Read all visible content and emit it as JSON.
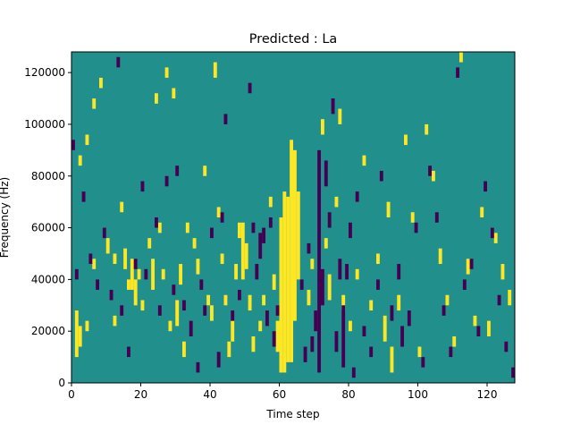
{
  "chart_data": {
    "type": "heatmap",
    "title": "Predicted : La",
    "xlabel": "Time step",
    "ylabel": "Frequency (Hz)",
    "xlim": [
      0,
      128
    ],
    "ylim": [
      0,
      128000
    ],
    "xticks": [
      "0",
      "20",
      "40",
      "60",
      "80",
      "100",
      "120"
    ],
    "yticks": [
      "0",
      "20000",
      "40000",
      "60000",
      "80000",
      "100000",
      "120000"
    ],
    "grid": false,
    "legend": "none",
    "n_time_steps": 128,
    "n_frequency_bins": 128,
    "value_levels": [
      -1,
      0,
      1
    ],
    "colormap": {
      "low": "#440154",
      "mid": "#21908d",
      "high": "#fde725"
    },
    "default_value": 0,
    "high_cells": [
      {
        "t": 1,
        "f0": 10000,
        "f1": 28000
      },
      {
        "t": 2,
        "f0": 14000,
        "f1": 22000
      },
      {
        "t": 2,
        "f0": 84000,
        "f1": 88000
      },
      {
        "t": 4,
        "f0": 92000,
        "f1": 96000
      },
      {
        "t": 4,
        "f0": 20000,
        "f1": 24000
      },
      {
        "t": 6,
        "f0": 106000,
        "f1": 110000
      },
      {
        "t": 6,
        "f0": 44000,
        "f1": 48000
      },
      {
        "t": 8,
        "f0": 114000,
        "f1": 118000
      },
      {
        "t": 10,
        "f0": 50000,
        "f1": 56000
      },
      {
        "t": 12,
        "f0": 22000,
        "f1": 26000
      },
      {
        "t": 12,
        "f0": 46000,
        "f1": 50000
      },
      {
        "t": 14,
        "f0": 66000,
        "f1": 70000
      },
      {
        "t": 15,
        "f0": 44000,
        "f1": 52000
      },
      {
        "t": 16,
        "f0": 36000,
        "f1": 40000
      },
      {
        "t": 17,
        "f0": 36000,
        "f1": 48000
      },
      {
        "t": 18,
        "f0": 30000,
        "f1": 40000
      },
      {
        "t": 19,
        "f0": 40000,
        "f1": 44000
      },
      {
        "t": 20,
        "f0": 28000,
        "f1": 32000
      },
      {
        "t": 22,
        "f0": 52000,
        "f1": 56000
      },
      {
        "t": 23,
        "f0": 36000,
        "f1": 48000
      },
      {
        "t": 24,
        "f0": 108000,
        "f1": 112000
      },
      {
        "t": 25,
        "f0": 58000,
        "f1": 62000
      },
      {
        "t": 26,
        "f0": 40000,
        "f1": 44000
      },
      {
        "t": 27,
        "f0": 118000,
        "f1": 122000
      },
      {
        "t": 28,
        "f0": 20000,
        "f1": 24000
      },
      {
        "t": 29,
        "f0": 110000,
        "f1": 114000
      },
      {
        "t": 30,
        "f0": 22000,
        "f1": 32000
      },
      {
        "t": 31,
        "f0": 38000,
        "f1": 46000
      },
      {
        "t": 32,
        "f0": 10000,
        "f1": 16000
      },
      {
        "t": 33,
        "f0": 58000,
        "f1": 62000
      },
      {
        "t": 35,
        "f0": 52000,
        "f1": 56000
      },
      {
        "t": 36,
        "f0": 42000,
        "f1": 48000
      },
      {
        "t": 38,
        "f0": 80000,
        "f1": 84000
      },
      {
        "t": 39,
        "f0": 30000,
        "f1": 34000
      },
      {
        "t": 40,
        "f0": 24000,
        "f1": 30000
      },
      {
        "t": 41,
        "f0": 118000,
        "f1": 124000
      },
      {
        "t": 42,
        "f0": 64000,
        "f1": 68000
      },
      {
        "t": 43,
        "f0": 46000,
        "f1": 50000
      },
      {
        "t": 44,
        "f0": 30000,
        "f1": 34000
      },
      {
        "t": 45,
        "f0": 10000,
        "f1": 16000
      },
      {
        "t": 46,
        "f0": 16000,
        "f1": 24000
      },
      {
        "t": 47,
        "f0": 40000,
        "f1": 46000
      },
      {
        "t": 48,
        "f0": 56000,
        "f1": 62000
      },
      {
        "t": 49,
        "f0": 40000,
        "f1": 62000
      },
      {
        "t": 50,
        "f0": 44000,
        "f1": 54000
      },
      {
        "t": 51,
        "f0": 28000,
        "f1": 34000
      },
      {
        "t": 52,
        "f0": 12000,
        "f1": 18000
      },
      {
        "t": 54,
        "f0": 20000,
        "f1": 24000
      },
      {
        "t": 55,
        "f0": 30000,
        "f1": 34000
      },
      {
        "t": 57,
        "f0": 68000,
        "f1": 72000
      },
      {
        "t": 58,
        "f0": 36000,
        "f1": 42000
      },
      {
        "t": 59,
        "f0": 12000,
        "f1": 24000
      },
      {
        "t": 60,
        "f0": 4000,
        "f1": 64000
      },
      {
        "t": 61,
        "f0": 4000,
        "f1": 74000
      },
      {
        "t": 62,
        "f0": 8000,
        "f1": 72000
      },
      {
        "t": 63,
        "f0": 8000,
        "f1": 94000
      },
      {
        "t": 64,
        "f0": 24000,
        "f1": 90000
      },
      {
        "t": 65,
        "f0": 40000,
        "f1": 74000
      },
      {
        "t": 68,
        "f0": 30000,
        "f1": 36000
      },
      {
        "t": 69,
        "f0": 44000,
        "f1": 48000
      },
      {
        "t": 72,
        "f0": 96000,
        "f1": 102000
      },
      {
        "t": 73,
        "f0": 52000,
        "f1": 56000
      },
      {
        "t": 74,
        "f0": 32000,
        "f1": 42000
      },
      {
        "t": 76,
        "f0": 68000,
        "f1": 72000
      },
      {
        "t": 77,
        "f0": 100000,
        "f1": 106000
      },
      {
        "t": 78,
        "f0": 28000,
        "f1": 34000
      },
      {
        "t": 80,
        "f0": 20000,
        "f1": 24000
      },
      {
        "t": 82,
        "f0": 40000,
        "f1": 44000
      },
      {
        "t": 84,
        "f0": 84000,
        "f1": 88000
      },
      {
        "t": 86,
        "f0": 28000,
        "f1": 32000
      },
      {
        "t": 88,
        "f0": 46000,
        "f1": 50000
      },
      {
        "t": 90,
        "f0": 16000,
        "f1": 26000
      },
      {
        "t": 91,
        "f0": 64000,
        "f1": 70000
      },
      {
        "t": 92,
        "f0": 4000,
        "f1": 14000
      },
      {
        "t": 94,
        "f0": 28000,
        "f1": 34000
      },
      {
        "t": 96,
        "f0": 92000,
        "f1": 96000
      },
      {
        "t": 98,
        "f0": 62000,
        "f1": 66000
      },
      {
        "t": 100,
        "f0": 10000,
        "f1": 14000
      },
      {
        "t": 102,
        "f0": 96000,
        "f1": 100000
      },
      {
        "t": 104,
        "f0": 78000,
        "f1": 82000
      },
      {
        "t": 106,
        "f0": 46000,
        "f1": 52000
      },
      {
        "t": 108,
        "f0": 30000,
        "f1": 34000
      },
      {
        "t": 110,
        "f0": 14000,
        "f1": 18000
      },
      {
        "t": 112,
        "f0": 124000,
        "f1": 128000
      },
      {
        "t": 114,
        "f0": 42000,
        "f1": 48000
      },
      {
        "t": 116,
        "f0": 22000,
        "f1": 26000
      },
      {
        "t": 118,
        "f0": 64000,
        "f1": 68000
      },
      {
        "t": 120,
        "f0": 18000,
        "f1": 24000
      },
      {
        "t": 122,
        "f0": 54000,
        "f1": 58000
      },
      {
        "t": 124,
        "f0": 40000,
        "f1": 46000
      },
      {
        "t": 126,
        "f0": 30000,
        "f1": 36000
      }
    ],
    "low_cells": [
      {
        "t": 0,
        "f0": 90000,
        "f1": 94000
      },
      {
        "t": 1,
        "f0": 40000,
        "f1": 44000
      },
      {
        "t": 3,
        "f0": 70000,
        "f1": 74000
      },
      {
        "t": 5,
        "f0": 46000,
        "f1": 50000
      },
      {
        "t": 7,
        "f0": 36000,
        "f1": 40000
      },
      {
        "t": 9,
        "f0": 56000,
        "f1": 60000
      },
      {
        "t": 11,
        "f0": 32000,
        "f1": 36000
      },
      {
        "t": 13,
        "f0": 122000,
        "f1": 126000
      },
      {
        "t": 14,
        "f0": 26000,
        "f1": 30000
      },
      {
        "t": 16,
        "f0": 10000,
        "f1": 14000
      },
      {
        "t": 18,
        "f0": 44000,
        "f1": 48000
      },
      {
        "t": 20,
        "f0": 74000,
        "f1": 78000
      },
      {
        "t": 21,
        "f0": 40000,
        "f1": 44000
      },
      {
        "t": 24,
        "f0": 60000,
        "f1": 64000
      },
      {
        "t": 25,
        "f0": 26000,
        "f1": 30000
      },
      {
        "t": 27,
        "f0": 76000,
        "f1": 80000
      },
      {
        "t": 29,
        "f0": 34000,
        "f1": 38000
      },
      {
        "t": 30,
        "f0": 80000,
        "f1": 84000
      },
      {
        "t": 32,
        "f0": 28000,
        "f1": 32000
      },
      {
        "t": 34,
        "f0": 18000,
        "f1": 24000
      },
      {
        "t": 36,
        "f0": 4000,
        "f1": 8000
      },
      {
        "t": 37,
        "f0": 36000,
        "f1": 40000
      },
      {
        "t": 38,
        "f0": 26000,
        "f1": 30000
      },
      {
        "t": 40,
        "f0": 56000,
        "f1": 60000
      },
      {
        "t": 42,
        "f0": 6000,
        "f1": 12000
      },
      {
        "t": 43,
        "f0": 62000,
        "f1": 66000
      },
      {
        "t": 44,
        "f0": 100000,
        "f1": 104000
      },
      {
        "t": 46,
        "f0": 24000,
        "f1": 28000
      },
      {
        "t": 48,
        "f0": 32000,
        "f1": 36000
      },
      {
        "t": 51,
        "f0": 112000,
        "f1": 116000
      },
      {
        "t": 52,
        "f0": 58000,
        "f1": 62000
      },
      {
        "t": 53,
        "f0": 40000,
        "f1": 46000
      },
      {
        "t": 54,
        "f0": 48000,
        "f1": 58000
      },
      {
        "t": 55,
        "f0": 54000,
        "f1": 60000
      },
      {
        "t": 56,
        "f0": 22000,
        "f1": 28000
      },
      {
        "t": 57,
        "f0": 60000,
        "f1": 64000
      },
      {
        "t": 58,
        "f0": 14000,
        "f1": 20000
      },
      {
        "t": 59,
        "f0": 26000,
        "f1": 30000
      },
      {
        "t": 66,
        "f0": 36000,
        "f1": 40000
      },
      {
        "t": 67,
        "f0": 8000,
        "f1": 14000
      },
      {
        "t": 68,
        "f0": 50000,
        "f1": 54000
      },
      {
        "t": 69,
        "f0": 12000,
        "f1": 18000
      },
      {
        "t": 70,
        "f0": 20000,
        "f1": 28000
      },
      {
        "t": 71,
        "f0": 4000,
        "f1": 90000
      },
      {
        "t": 72,
        "f0": 30000,
        "f1": 44000
      },
      {
        "t": 73,
        "f0": 76000,
        "f1": 86000
      },
      {
        "t": 74,
        "f0": 60000,
        "f1": 66000
      },
      {
        "t": 75,
        "f0": 104000,
        "f1": 110000
      },
      {
        "t": 76,
        "f0": 12000,
        "f1": 20000
      },
      {
        "t": 77,
        "f0": 40000,
        "f1": 48000
      },
      {
        "t": 78,
        "f0": 6000,
        "f1": 30000
      },
      {
        "t": 79,
        "f0": 40000,
        "f1": 46000
      },
      {
        "t": 80,
        "f0": 56000,
        "f1": 62000
      },
      {
        "t": 81,
        "f0": 2000,
        "f1": 6000
      },
      {
        "t": 82,
        "f0": 70000,
        "f1": 74000
      },
      {
        "t": 84,
        "f0": 18000,
        "f1": 22000
      },
      {
        "t": 86,
        "f0": 10000,
        "f1": 14000
      },
      {
        "t": 88,
        "f0": 36000,
        "f1": 40000
      },
      {
        "t": 89,
        "f0": 78000,
        "f1": 82000
      },
      {
        "t": 92,
        "f0": 24000,
        "f1": 30000
      },
      {
        "t": 94,
        "f0": 40000,
        "f1": 46000
      },
      {
        "t": 95,
        "f0": 14000,
        "f1": 22000
      },
      {
        "t": 97,
        "f0": 22000,
        "f1": 28000
      },
      {
        "t": 99,
        "f0": 58000,
        "f1": 62000
      },
      {
        "t": 101,
        "f0": 6000,
        "f1": 10000
      },
      {
        "t": 103,
        "f0": 80000,
        "f1": 84000
      },
      {
        "t": 105,
        "f0": 62000,
        "f1": 66000
      },
      {
        "t": 107,
        "f0": 26000,
        "f1": 30000
      },
      {
        "t": 109,
        "f0": 10000,
        "f1": 14000
      },
      {
        "t": 111,
        "f0": 118000,
        "f1": 122000
      },
      {
        "t": 113,
        "f0": 36000,
        "f1": 40000
      },
      {
        "t": 115,
        "f0": 44000,
        "f1": 48000
      },
      {
        "t": 117,
        "f0": 18000,
        "f1": 22000
      },
      {
        "t": 119,
        "f0": 74000,
        "f1": 78000
      },
      {
        "t": 121,
        "f0": 56000,
        "f1": 60000
      },
      {
        "t": 123,
        "f0": 30000,
        "f1": 34000
      },
      {
        "t": 125,
        "f0": 12000,
        "f1": 16000
      },
      {
        "t": 127,
        "f0": 2000,
        "f1": 6000
      }
    ]
  }
}
